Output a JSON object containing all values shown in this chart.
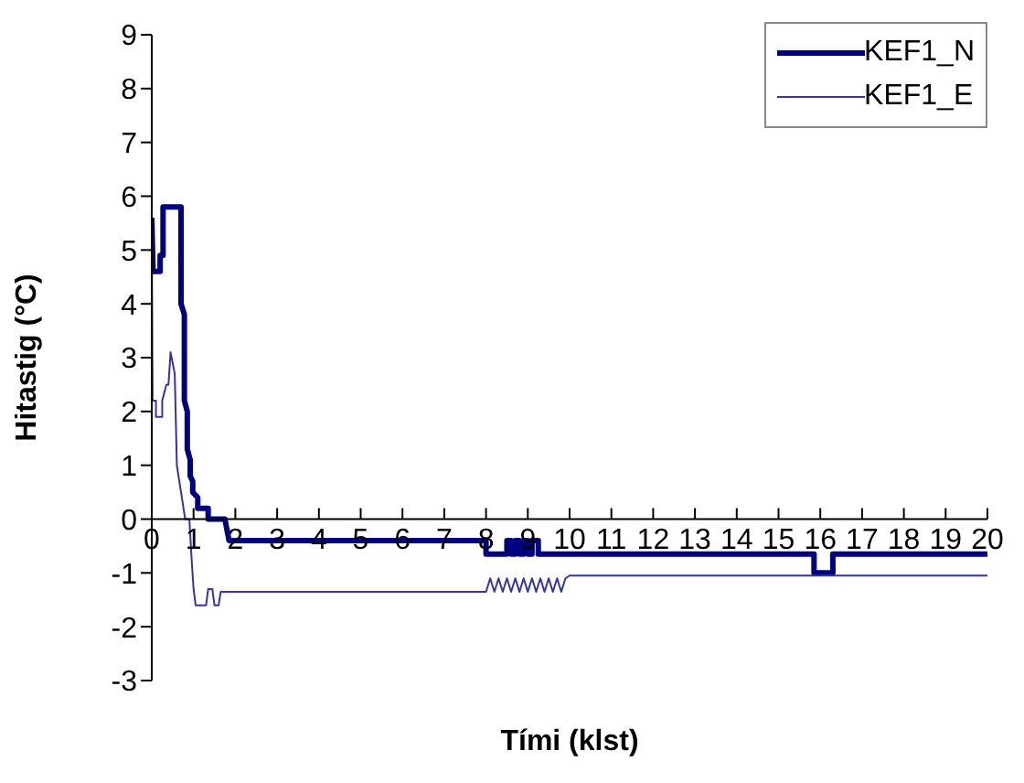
{
  "chart_data": {
    "type": "line",
    "xlabel": "Tími (klst)",
    "ylabel": "Hitastig (°C)",
    "xlim": [
      0,
      20
    ],
    "xticks": [
      0,
      1,
      2,
      3,
      4,
      5,
      6,
      7,
      8,
      9,
      10,
      11,
      12,
      13,
      14,
      15,
      16,
      17,
      18,
      19,
      20
    ],
    "ylim": [
      -3,
      9
    ],
    "yticks": [
      -3,
      -2,
      -1,
      0,
      1,
      2,
      3,
      4,
      5,
      6,
      7,
      8,
      9
    ],
    "legend": "top right",
    "marker": "none",
    "line_style": "solid",
    "series": [
      {
        "name": "KEF1_N",
        "color": "#000080",
        "x": [
          0,
          0.03,
          0.2,
          0.2,
          0.27,
          0.27,
          0.7,
          0.7,
          0.78,
          0.78,
          0.85,
          0.85,
          0.92,
          0.92,
          0.98,
          0.98,
          1.1,
          1.1,
          1.35,
          1.35,
          1.75,
          1.85,
          8.0,
          8.0,
          8.5,
          8.5,
          8.6,
          8.6,
          8.7,
          8.7,
          8.8,
          8.8,
          8.9,
          8.9,
          9.0,
          9.0,
          9.1,
          9.1,
          9.25,
          9.25,
          15.85,
          15.85,
          16.3,
          16.3,
          20
        ],
        "values": [
          5.6,
          4.6,
          4.6,
          4.9,
          4.9,
          5.8,
          5.8,
          4.0,
          3.8,
          2.2,
          2.0,
          1.3,
          1.1,
          0.8,
          0.7,
          0.5,
          0.4,
          0.2,
          0.2,
          0,
          0,
          -0.4,
          -0.4,
          -0.65,
          -0.65,
          -0.4,
          -0.4,
          -0.65,
          -0.65,
          -0.4,
          -0.4,
          -0.65,
          -0.65,
          -0.4,
          -0.4,
          -0.65,
          -0.65,
          -0.4,
          -0.4,
          -0.65,
          -0.65,
          -1.0,
          -1.0,
          -0.65,
          -0.65
        ]
      },
      {
        "name": "KEF1_E",
        "color": "#3333aa",
        "x": [
          0,
          0.02,
          0.1,
          0.1,
          0.25,
          0.25,
          0.35,
          0.4,
          0.45,
          0.55,
          0.6,
          0.7,
          0.8,
          0.9,
          0.95,
          1.0,
          1.05,
          1.3,
          1.35,
          1.45,
          1.5,
          1.6,
          1.65,
          8.0,
          8.1,
          8.2,
          8.3,
          8.4,
          8.5,
          8.6,
          8.7,
          8.8,
          8.9,
          9.0,
          9.1,
          9.2,
          9.3,
          9.4,
          9.5,
          9.6,
          9.7,
          9.8,
          9.9,
          10.0,
          20
        ],
        "values": [
          5.2,
          2.2,
          2.2,
          1.9,
          1.9,
          2.2,
          2.5,
          2.5,
          3.1,
          2.7,
          1.0,
          0.5,
          0,
          0,
          -0.7,
          -1.3,
          -1.6,
          -1.6,
          -1.3,
          -1.3,
          -1.6,
          -1.6,
          -1.35,
          -1.35,
          -1.1,
          -1.35,
          -1.1,
          -1.35,
          -1.1,
          -1.35,
          -1.1,
          -1.35,
          -1.1,
          -1.35,
          -1.1,
          -1.35,
          -1.1,
          -1.35,
          -1.1,
          -1.35,
          -1.1,
          -1.35,
          -1.1,
          -1.05,
          -1.05
        ]
      }
    ]
  }
}
